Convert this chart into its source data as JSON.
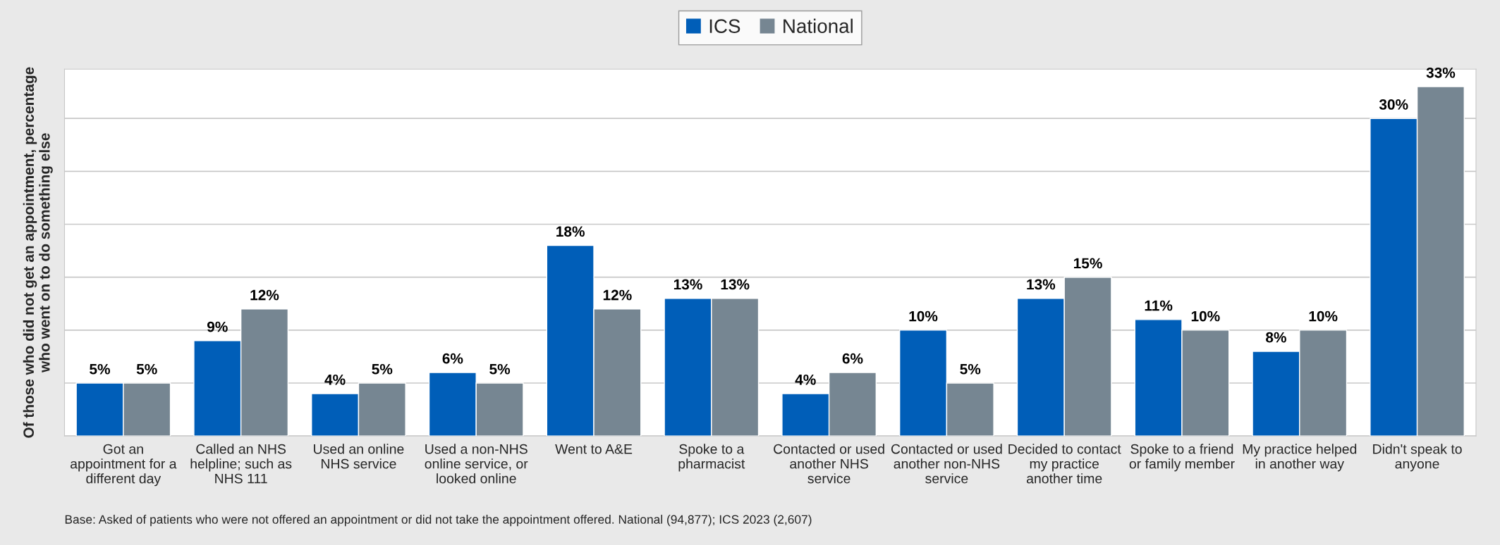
{
  "chart_data": {
    "type": "bar",
    "categories": [
      "Got an\nappointment for a\ndifferent day",
      "Called an NHS\nhelpline; such as\nNHS 111",
      "Used an online\nNHS service",
      "Used a non-NHS\nonline service, or\nlooked online",
      "Went to A&E",
      "Spoke to a\npharmacist",
      "Contacted or used\nanother NHS\nservice",
      "Contacted or used\nanother non-NHS\nservice",
      "Decided to contact\nmy practice\nanother time",
      "Spoke to a friend\nor family member",
      "My practice helped\nin another way",
      "Didn't speak to\nanyone"
    ],
    "series": [
      {
        "name": "ICS",
        "color": "#005eb8",
        "values": [
          5,
          9,
          4,
          6,
          18,
          13,
          4,
          10,
          13,
          11,
          8,
          30
        ],
        "value_labels": [
          "5%",
          "9%",
          "4%",
          "6%",
          "18%",
          "13%",
          "4%",
          "10%",
          "13%",
          "11%",
          "8%",
          "30%"
        ]
      },
      {
        "name": "National",
        "color": "#768692",
        "values": [
          5,
          12,
          5,
          5,
          12,
          13,
          6,
          5,
          15,
          10,
          10,
          33
        ],
        "value_labels": [
          "5%",
          "12%",
          "5%",
          "5%",
          "12%",
          "13%",
          "6%",
          "5%",
          "15%",
          "10%",
          "10%",
          "33%"
        ]
      }
    ],
    "ylabel": "Of those who did not get an appointment, percentage\nwho went on to do something else",
    "grid": "y",
    "legend": "top",
    "tick_labels": "x",
    "annotations": [
      "Base: Asked of patients who were not offered an appointment or did not take the appointment offered. National (94,877); ICS 2023 (2,607)"
    ]
  }
}
